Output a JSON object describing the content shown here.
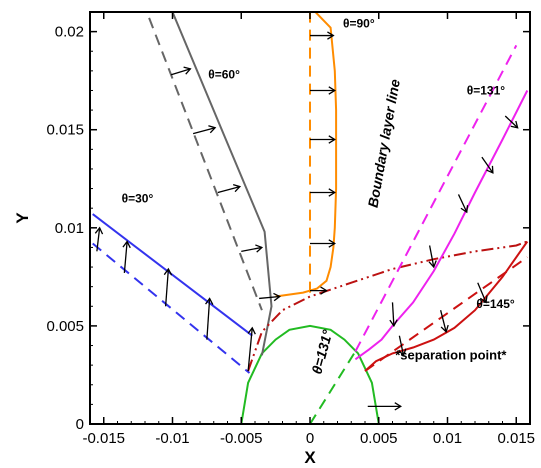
{
  "chart_data": {
    "type": "line",
    "xlabel": "X",
    "ylabel": "Y",
    "xlim": [
      -0.016,
      0.016
    ],
    "ylim": [
      0,
      0.021
    ],
    "x_ticks": [
      -0.015,
      -0.01,
      -0.005,
      0,
      0.005,
      0.01,
      0.015
    ],
    "x_tick_labels": [
      "-0.015",
      "-0.01",
      "-0.005",
      "0",
      "0.005",
      "0.01",
      "0.015"
    ],
    "y_ticks": [
      0,
      0.005,
      0.01,
      0.015,
      0.02
    ],
    "y_tick_labels": [
      "0",
      "0.005",
      "0.01",
      "0.015",
      "0.02"
    ],
    "grid": false,
    "annotations": [
      {
        "text": "θ=30°",
        "x": -0.0137,
        "y": 0.0113
      },
      {
        "text": "θ=60°",
        "x": -0.0074,
        "y": 0.0176
      },
      {
        "text": "θ=90°",
        "x": 0.0024,
        "y": 0.0202
      },
      {
        "text": "θ=131°",
        "x": 0.0114,
        "y": 0.0168
      },
      {
        "text": "θ=145°",
        "x": 0.0121,
        "y": 0.0059
      },
      {
        "text": "Boundary layer line",
        "x": 0.0049,
        "y": 0.011
      },
      {
        "text": "θ=131°",
        "x": 0.0008,
        "y": 0.0025
      },
      {
        "text": "*separation point*",
        "x": 0.0062,
        "y": 0.0033
      }
    ],
    "series": [
      {
        "style": "circle",
        "color": "#22bb22",
        "x": [
          -0.005,
          -0.0045,
          -0.0035,
          -0.0025,
          -0.0015,
          0,
          0.0015,
          0.0025,
          0.0035,
          0.0045,
          0.005
        ],
        "y": [
          0,
          0.0021,
          0.0036,
          0.0043,
          0.0048,
          0.005,
          0.0048,
          0.0043,
          0.0036,
          0.0021,
          0
        ]
      },
      {
        "style": "dashed",
        "color": "#22bb22",
        "x": [
          0,
          0.0033
        ],
        "y": [
          0,
          0.0037
        ]
      },
      {
        "style": "solid",
        "color": "#3333ee",
        "x": [
          -0.0158,
          -0.0042
        ],
        "y": [
          0.0107,
          0.0045
        ]
      },
      {
        "style": "dashed",
        "color": "#3333ee",
        "x": [
          -0.0158,
          -0.0044
        ],
        "y": [
          0.0092,
          0.0026
        ]
      },
      {
        "style": "solid",
        "color": "#666666",
        "x": [
          -0.0103,
          -0.0063,
          -0.0033,
          -0.0028,
          -0.0035
        ],
        "y": [
          0.0215,
          0.0148,
          0.0098,
          0.006,
          0.0035
        ]
      },
      {
        "style": "dashed",
        "color": "#666666",
        "x": [
          -0.0117,
          -0.0035
        ],
        "y": [
          0.0207,
          0.0058
        ]
      },
      {
        "style": "solid",
        "color": "#ff8c00",
        "x": [
          -0.0003,
          0.0015,
          0.0018,
          0.0019,
          0.0019,
          0.0019,
          0.0018,
          0.0017,
          0.0015,
          0.0012,
          0.0005,
          -0.0005,
          -0.0025
        ],
        "y": [
          0.0215,
          0.0202,
          0.018,
          0.016,
          0.014,
          0.012,
          0.01,
          0.009,
          0.008,
          0.0073,
          0.0069,
          0.0067,
          0.0065
        ]
      },
      {
        "style": "dashed",
        "color": "#ff8c00",
        "x": [
          0,
          0
        ],
        "y": [
          0.0067,
          0.0215
        ]
      },
      {
        "style": "dashdot",
        "color": "#bb1111",
        "x": [
          -0.0045,
          -0.0035,
          -0.002,
          0,
          0.003,
          0.006,
          0.009,
          0.012,
          0.015,
          0.0158
        ],
        "y": [
          0.0027,
          0.0047,
          0.0058,
          0.0065,
          0.0072,
          0.0079,
          0.0084,
          0.0088,
          0.0091,
          0.0093
        ]
      },
      {
        "style": "solid",
        "color": "#ee22ee",
        "x": [
          0.0033,
          0.0043,
          0.0052,
          0.006,
          0.0075,
          0.009,
          0.0105,
          0.012,
          0.014,
          0.0158
        ],
        "y": [
          0.0033,
          0.0038,
          0.0043,
          0.005,
          0.0062,
          0.0078,
          0.0097,
          0.0118,
          0.0145,
          0.017
        ]
      },
      {
        "style": "dashed",
        "color": "#ee22ee",
        "x": [
          0.0033,
          0.015
        ],
        "y": [
          0.0037,
          0.0193
        ]
      },
      {
        "style": "solid",
        "color": "#cc1111",
        "x": [
          0.004,
          0.0048,
          0.006,
          0.0075,
          0.009,
          0.0105,
          0.012,
          0.014,
          0.0158
        ],
        "y": [
          0.0027,
          0.0032,
          0.0036,
          0.0039,
          0.0043,
          0.0049,
          0.0058,
          0.0075,
          0.0093
        ]
      },
      {
        "style": "dashed",
        "color": "#cc1111",
        "x": [
          0.004,
          0.0158
        ],
        "y": [
          0.0027,
          0.0085
        ]
      }
    ],
    "arrows": [
      {
        "x": -0.0045,
        "y": 0.0027,
        "dx": 0.0003,
        "dy": 0.0022
      },
      {
        "x": -0.0075,
        "y": 0.0043,
        "dx": 0.0002,
        "dy": 0.0021
      },
      {
        "x": -0.0105,
        "y": 0.006,
        "dx": 0.0002,
        "dy": 0.0019
      },
      {
        "x": -0.0135,
        "y": 0.0077,
        "dx": 0.0002,
        "dy": 0.0016
      },
      {
        "x": -0.0155,
        "y": 0.0088,
        "dx": 0.0002,
        "dy": 0.0012
      },
      {
        "x": -0.0037,
        "y": 0.0064,
        "dx": 0.0015,
        "dy": 0.0001
      },
      {
        "x": -0.005,
        "y": 0.0088,
        "dx": 0.0015,
        "dy": 0.0002
      },
      {
        "x": -0.0067,
        "y": 0.0118,
        "dx": 0.0016,
        "dy": 0.0003
      },
      {
        "x": -0.0085,
        "y": 0.0148,
        "dx": 0.0016,
        "dy": 0.0003
      },
      {
        "x": -0.0101,
        "y": 0.0178,
        "dx": 0.0014,
        "dy": 0.0003
      },
      {
        "x": 0,
        "y": 0.0068,
        "dx": 0.0012,
        "dy": 0
      },
      {
        "x": 0,
        "y": 0.0092,
        "dx": 0.0018,
        "dy": 0
      },
      {
        "x": 0,
        "y": 0.0118,
        "dx": 0.0018,
        "dy": 0
      },
      {
        "x": 0,
        "y": 0.0145,
        "dx": 0.0018,
        "dy": 0
      },
      {
        "x": 0,
        "y": 0.017,
        "dx": 0.0018,
        "dy": 0
      },
      {
        "x": 0,
        "y": 0.0198,
        "dx": 0.0017,
        "dy": 0
      },
      {
        "x": 0.006,
        "y": 0.0062,
        "dx": 0.0001,
        "dy": -0.0012
      },
      {
        "x": 0.0087,
        "y": 0.0091,
        "dx": 0.0003,
        "dy": -0.0011
      },
      {
        "x": 0.0108,
        "y": 0.0117,
        "dx": 0.0006,
        "dy": -0.0009
      },
      {
        "x": 0.0125,
        "y": 0.0136,
        "dx": 0.0008,
        "dy": -0.0008
      },
      {
        "x": 0.0142,
        "y": 0.0157,
        "dx": 0.0009,
        "dy": -0.0006
      },
      {
        "x": 0.0065,
        "y": 0.0045,
        "dx": 0.0003,
        "dy": -0.001
      },
      {
        "x": 0.0095,
        "y": 0.0058,
        "dx": 0.0004,
        "dy": -0.0011
      },
      {
        "x": 0.0122,
        "y": 0.0072,
        "dx": 0.0006,
        "dy": -0.001
      },
      {
        "x": 0.0042,
        "y": 0.0009,
        "dx": 0.0024,
        "dy": 0
      }
    ]
  }
}
